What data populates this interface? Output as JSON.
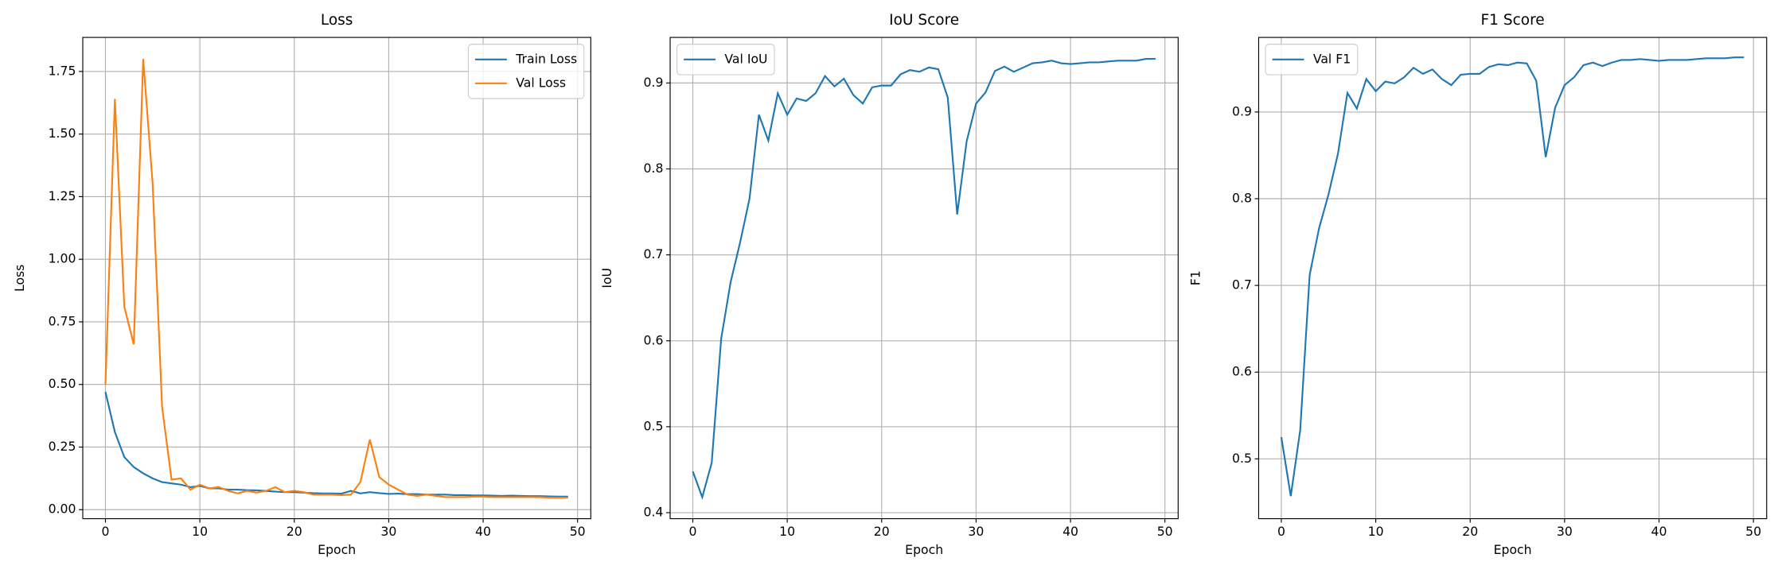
{
  "chart_data": [
    {
      "type": "line",
      "title": "Loss",
      "xlabel": "Epoch",
      "ylabel": "Loss",
      "legend": "upper right",
      "grid": true,
      "x": [
        0,
        1,
        2,
        3,
        4,
        5,
        6,
        7,
        8,
        9,
        10,
        11,
        12,
        13,
        14,
        15,
        16,
        17,
        18,
        19,
        20,
        21,
        22,
        23,
        24,
        25,
        26,
        27,
        28,
        29,
        30,
        31,
        32,
        33,
        34,
        35,
        36,
        37,
        38,
        39,
        40,
        41,
        42,
        43,
        44,
        45,
        46,
        47,
        48,
        49
      ],
      "xlim": [
        -2.4,
        51.4
      ],
      "xticks": [
        0,
        10,
        20,
        30,
        40,
        50
      ],
      "ylim": [
        -0.036,
        1.886
      ],
      "yticks": [
        {
          "value": 0,
          "label": "0.00"
        },
        {
          "value": 0.25,
          "label": "0.25"
        },
        {
          "value": 0.5,
          "label": "0.50"
        },
        {
          "value": 0.75,
          "label": "0.75"
        },
        {
          "value": 1,
          "label": "1.00"
        },
        {
          "value": 1.25,
          "label": "1.25"
        },
        {
          "value": 1.5,
          "label": "1.50"
        },
        {
          "value": 1.75,
          "label": "1.75"
        }
      ],
      "series": [
        {
          "name": "Train Loss",
          "color": "#1f77b4",
          "values": [
            0.47,
            0.31,
            0.21,
            0.17,
            0.145,
            0.125,
            0.11,
            0.105,
            0.1,
            0.09,
            0.095,
            0.085,
            0.085,
            0.08,
            0.08,
            0.078,
            0.077,
            0.075,
            0.072,
            0.07,
            0.07,
            0.068,
            0.066,
            0.065,
            0.065,
            0.064,
            0.075,
            0.065,
            0.07,
            0.066,
            0.063,
            0.064,
            0.062,
            0.062,
            0.06,
            0.06,
            0.06,
            0.058,
            0.058,
            0.057,
            0.057,
            0.056,
            0.055,
            0.056,
            0.055,
            0.054,
            0.054,
            0.053,
            0.052,
            0.052
          ]
        },
        {
          "name": "Val Loss",
          "color": "#ff7f0e",
          "values": [
            0.5,
            1.64,
            0.81,
            0.66,
            1.8,
            1.3,
            0.41,
            0.12,
            0.125,
            0.08,
            0.1,
            0.085,
            0.09,
            0.075,
            0.065,
            0.075,
            0.068,
            0.075,
            0.09,
            0.07,
            0.075,
            0.07,
            0.06,
            0.06,
            0.06,
            0.058,
            0.06,
            0.11,
            0.28,
            0.13,
            0.1,
            0.08,
            0.06,
            0.055,
            0.06,
            0.055,
            0.05,
            0.05,
            0.05,
            0.052,
            0.052,
            0.05,
            0.05,
            0.05,
            0.05,
            0.05,
            0.05,
            0.048,
            0.048,
            0.048
          ]
        }
      ]
    },
    {
      "type": "line",
      "title": "IoU Score",
      "xlabel": "Epoch",
      "ylabel": "IoU",
      "legend": "upper left",
      "grid": true,
      "x": [
        0,
        1,
        2,
        3,
        4,
        5,
        6,
        7,
        8,
        9,
        10,
        11,
        12,
        13,
        14,
        15,
        16,
        17,
        18,
        19,
        20,
        21,
        22,
        23,
        24,
        25,
        26,
        27,
        28,
        29,
        30,
        31,
        32,
        33,
        34,
        35,
        36,
        37,
        38,
        39,
        40,
        41,
        42,
        43,
        44,
        45,
        46,
        47,
        48,
        49
      ],
      "xlim": [
        -2.4,
        51.4
      ],
      "xticks": [
        0,
        10,
        20,
        30,
        40,
        50
      ],
      "ylim": [
        0.393,
        0.953
      ],
      "yticks": [
        0.4,
        0.5,
        0.6,
        0.7,
        0.8,
        0.9
      ],
      "series": [
        {
          "name": "Val IoU",
          "color": "#1f77b4",
          "values": [
            0.448,
            0.418,
            0.458,
            0.602,
            0.668,
            0.714,
            0.765,
            0.863,
            0.833,
            0.888,
            0.863,
            0.882,
            0.879,
            0.888,
            0.908,
            0.896,
            0.905,
            0.886,
            0.876,
            0.895,
            0.897,
            0.897,
            0.91,
            0.915,
            0.913,
            0.918,
            0.916,
            0.883,
            0.747,
            0.832,
            0.876,
            0.889,
            0.914,
            0.919,
            0.913,
            0.918,
            0.923,
            0.924,
            0.926,
            0.923,
            0.922,
            0.923,
            0.924,
            0.924,
            0.925,
            0.926,
            0.926,
            0.926,
            0.928,
            0.928
          ]
        }
      ]
    },
    {
      "type": "line",
      "title": "F1 Score",
      "xlabel": "Epoch",
      "ylabel": "F1",
      "legend": "upper left",
      "grid": true,
      "x": [
        0,
        1,
        2,
        3,
        4,
        5,
        6,
        7,
        8,
        9,
        10,
        11,
        12,
        13,
        14,
        15,
        16,
        17,
        18,
        19,
        20,
        21,
        22,
        23,
        24,
        25,
        26,
        27,
        28,
        29,
        30,
        31,
        32,
        33,
        34,
        35,
        36,
        37,
        38,
        39,
        40,
        41,
        42,
        43,
        44,
        45,
        46,
        47,
        48,
        49
      ],
      "xlim": [
        -2.4,
        51.4
      ],
      "xticks": [
        0,
        10,
        20,
        30,
        40,
        50
      ],
      "ylim": [
        0.431,
        0.986
      ],
      "yticks": [
        0.5,
        0.6,
        0.7,
        0.8,
        0.9
      ],
      "series": [
        {
          "name": "Val F1",
          "color": "#1f77b4",
          "values": [
            0.525,
            0.457,
            0.533,
            0.712,
            0.766,
            0.805,
            0.852,
            0.922,
            0.904,
            0.938,
            0.924,
            0.935,
            0.933,
            0.94,
            0.951,
            0.944,
            0.949,
            0.938,
            0.931,
            0.943,
            0.944,
            0.944,
            0.952,
            0.955,
            0.954,
            0.957,
            0.956,
            0.936,
            0.848,
            0.905,
            0.931,
            0.94,
            0.954,
            0.957,
            0.953,
            0.957,
            0.96,
            0.96,
            0.961,
            0.96,
            0.959,
            0.96,
            0.96,
            0.96,
            0.961,
            0.962,
            0.962,
            0.962,
            0.963,
            0.963
          ]
        }
      ]
    }
  ]
}
